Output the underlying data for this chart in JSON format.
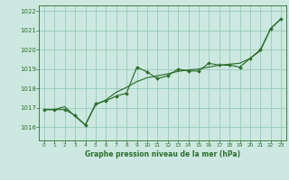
{
  "title": "Graphe pression niveau de la mer (hPa)",
  "bg_color": "#cce8e0",
  "grid_color": "#99ccbb",
  "line_color": "#2d6e2d",
  "xlim": [
    -0.5,
    23.5
  ],
  "ylim": [
    1015.3,
    1022.3
  ],
  "yticks": [
    1016,
    1017,
    1018,
    1019,
    1020,
    1021,
    1022
  ],
  "xticks": [
    0,
    1,
    2,
    3,
    4,
    5,
    6,
    7,
    8,
    9,
    10,
    11,
    12,
    13,
    14,
    15,
    16,
    17,
    18,
    19,
    20,
    21,
    22,
    23
  ],
  "volatile": [
    1016.9,
    1016.9,
    1016.9,
    1016.6,
    1016.1,
    1017.2,
    1017.35,
    1017.6,
    1017.75,
    1019.1,
    1018.85,
    1018.5,
    1018.65,
    1019.0,
    1018.9,
    1018.9,
    1019.3,
    1019.2,
    1019.2,
    1019.1,
    1019.55,
    1020.0,
    1021.1,
    1021.6
  ],
  "trend": [
    1016.9,
    1016.9,
    1017.05,
    1016.55,
    1016.1,
    1017.15,
    1017.4,
    1017.8,
    1018.05,
    1018.35,
    1018.55,
    1018.65,
    1018.75,
    1018.88,
    1018.95,
    1019.0,
    1019.1,
    1019.2,
    1019.25,
    1019.3,
    1019.55,
    1019.95,
    1021.1,
    1021.6
  ]
}
